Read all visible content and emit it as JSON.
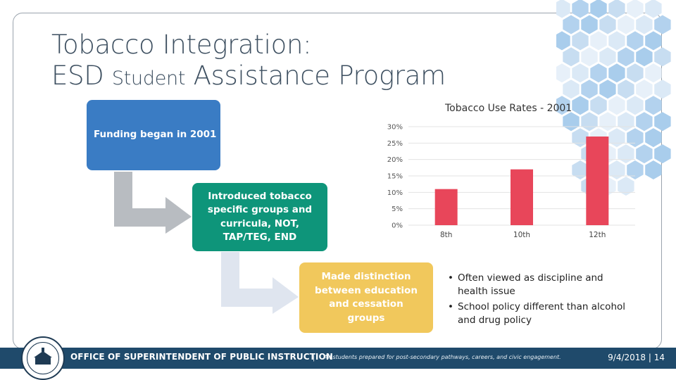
{
  "slide": {
    "title_line1": "Tobacco Integration:",
    "title_line2_a": "ESD ",
    "title_line2_b": "Student",
    "title_line2_c": " Assistance Program"
  },
  "process": {
    "step1": "Funding began in 2001",
    "step2": "Introduced tobacco specific groups and curricula, NOT, TAP/TEG, END",
    "step3": "Made distinction between education and cessation groups"
  },
  "chart_data": {
    "type": "bar",
    "title": "Tobacco Use Rates - 2001",
    "categories": [
      "8th",
      "10th",
      "12th"
    ],
    "values": [
      11,
      17,
      27
    ],
    "ylim": [
      0,
      30
    ],
    "yticks": [
      "0%",
      "5%",
      "10%",
      "15%",
      "20%",
      "25%",
      "30%"
    ],
    "bar_color": "#e8465a",
    "grid": true
  },
  "bullets": [
    "Often viewed as discipline and health issue",
    "School policy different than alcohol and drug policy"
  ],
  "footer": {
    "org": "OFFICE OF SUPERINTENDENT OF PUBLIC INSTRUCTION",
    "separator": "|",
    "tagline": "All students prepared for post-secondary pathways, careers, and civic engagement.",
    "date_page": "9/4/2018 | 14"
  },
  "colors": {
    "box1": "#3a7cc4",
    "box2": "#0e957a",
    "box3": "#f1c85c",
    "footer": "#1f4a6b"
  }
}
